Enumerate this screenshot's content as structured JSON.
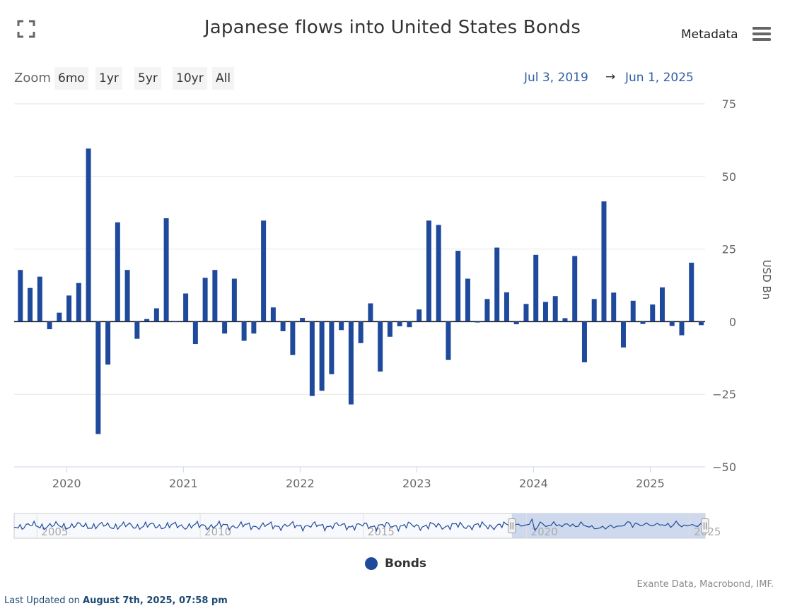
{
  "header": {
    "title": "Japanese flows into United States Bonds",
    "metadata_label": "Metadata"
  },
  "zoom": {
    "label": "Zoom",
    "buttons": [
      "6mo",
      "1yr",
      "5yr",
      "10yr",
      "All"
    ]
  },
  "range": {
    "from": "Jul 3, 2019",
    "arrow": "→",
    "to": "Jun 1, 2025"
  },
  "legend": {
    "label": "Bonds"
  },
  "footer": {
    "credits": "Exante Data, Macrobond, IMF.",
    "updated_prefix": "Last Updated on",
    "updated_date": "August 7th, 2025, 07:58 pm"
  },
  "colors": {
    "series": "#1f4a9c",
    "navigator_fill": "#c8d3ea",
    "grid": "#e6e6e6"
  },
  "chart_data": {
    "type": "bar",
    "title": "Japanese flows into United States Bonds",
    "ylabel": "USD Bn",
    "ylim": [
      -50,
      75
    ],
    "yticks": [
      -50,
      -25,
      0,
      25,
      50,
      75
    ],
    "xticks": [
      "2020",
      "2021",
      "2022",
      "2023",
      "2024",
      "2025"
    ],
    "x_start": "2019-08",
    "x_range": [
      2019.55,
      2025.47
    ],
    "series": [
      {
        "name": "Bonds",
        "categories": [
          "2019-08",
          "2019-09",
          "2019-10",
          "2019-11",
          "2019-12",
          "2020-01",
          "2020-02",
          "2020-03",
          "2020-04",
          "2020-05",
          "2020-06",
          "2020-07",
          "2020-08",
          "2020-09",
          "2020-10",
          "2020-11",
          "2020-12",
          "2021-01",
          "2021-02",
          "2021-03",
          "2021-04",
          "2021-05",
          "2021-06",
          "2021-07",
          "2021-08",
          "2021-09",
          "2021-10",
          "2021-11",
          "2021-12",
          "2022-01",
          "2022-02",
          "2022-03",
          "2022-04",
          "2022-05",
          "2022-06",
          "2022-07",
          "2022-08",
          "2022-09",
          "2022-10",
          "2022-11",
          "2022-12",
          "2023-01",
          "2023-02",
          "2023-03",
          "2023-04",
          "2023-05",
          "2023-06",
          "2023-07",
          "2023-08",
          "2023-09",
          "2023-10",
          "2023-11",
          "2023-12",
          "2024-01",
          "2024-02",
          "2024-03",
          "2024-04",
          "2024-05",
          "2024-06",
          "2024-07",
          "2024-08",
          "2024-09",
          "2024-10",
          "2024-11",
          "2024-12",
          "2025-01",
          "2025-02",
          "2025-03",
          "2025-04",
          "2025-05",
          "2025-06"
        ],
        "values": [
          17.8,
          11.6,
          15.5,
          -2.6,
          3.1,
          9.0,
          13.3,
          59.6,
          -38.7,
          -14.8,
          34.2,
          17.8,
          -5.9,
          0.9,
          4.6,
          35.6,
          0.2,
          9.7,
          -7.7,
          15.1,
          17.8,
          -4.1,
          14.8,
          -6.6,
          -4.1,
          34.8,
          4.9,
          -3.3,
          -11.5,
          1.3,
          -25.6,
          -23.8,
          -18.1,
          -2.9,
          -28.5,
          -7.4,
          6.3,
          -17.2,
          -5.2,
          -1.6,
          -1.9,
          4.2,
          34.8,
          33.3,
          -13.2,
          24.4,
          14.8,
          -0.3,
          7.8,
          25.5,
          10.1,
          -0.9,
          6.1,
          23.0,
          6.8,
          8.8,
          1.2,
          22.6,
          -14.0,
          7.8,
          41.4,
          10.0,
          -8.9,
          7.2,
          -0.8,
          5.9,
          11.8,
          -1.5,
          -4.7,
          20.3,
          -1.2
        ]
      }
    ],
    "navigator": {
      "xticks": [
        "2005",
        "2010",
        "2015",
        "2020",
        "2025"
      ],
      "x_range": [
        2004.3,
        2025.47
      ],
      "selection": [
        2019.55,
        2025.47
      ]
    }
  }
}
